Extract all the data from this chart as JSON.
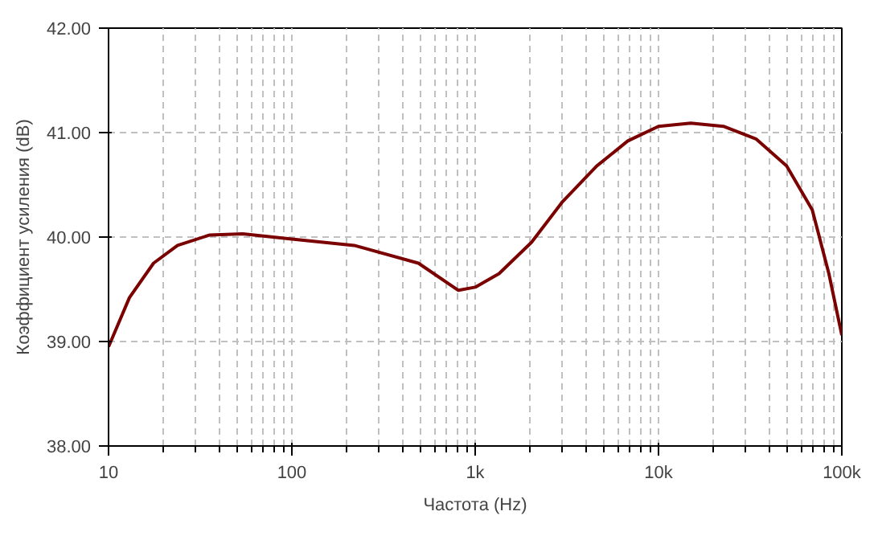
{
  "chart_data": {
    "type": "line",
    "xlabel": "Частота (Hz)",
    "ylabel": "Коэффициент усиления (dB)",
    "log": "x",
    "grid": true,
    "marker": "none",
    "line_style": "solid",
    "xlim": [
      10,
      100000
    ],
    "ylim": [
      38,
      42
    ],
    "xticks": [
      {
        "value": 10,
        "label": "10"
      },
      {
        "value": 20,
        "label": null
      },
      {
        "value": 30,
        "label": null
      },
      {
        "value": 40,
        "label": null
      },
      {
        "value": 50,
        "label": null
      },
      {
        "value": 60,
        "label": null
      },
      {
        "value": 70,
        "label": null
      },
      {
        "value": 80,
        "label": null
      },
      {
        "value": 90,
        "label": null
      },
      {
        "value": 100,
        "label": "100"
      },
      {
        "value": 200,
        "label": null
      },
      {
        "value": 300,
        "label": null
      },
      {
        "value": 400,
        "label": null
      },
      {
        "value": 500,
        "label": null
      },
      {
        "value": 600,
        "label": null
      },
      {
        "value": 700,
        "label": null
      },
      {
        "value": 800,
        "label": null
      },
      {
        "value": 900,
        "label": null
      },
      {
        "value": 1000,
        "label": "1k"
      },
      {
        "value": 2000,
        "label": null
      },
      {
        "value": 3000,
        "label": null
      },
      {
        "value": 4000,
        "label": null
      },
      {
        "value": 5000,
        "label": null
      },
      {
        "value": 6000,
        "label": null
      },
      {
        "value": 7000,
        "label": null
      },
      {
        "value": 8000,
        "label": null
      },
      {
        "value": 9000,
        "label": null
      },
      {
        "value": 10000,
        "label": "10k"
      },
      {
        "value": 20000,
        "label": null
      },
      {
        "value": 30000,
        "label": null
      },
      {
        "value": 40000,
        "label": null
      },
      {
        "value": 50000,
        "label": null
      },
      {
        "value": 60000,
        "label": null
      },
      {
        "value": 70000,
        "label": null
      },
      {
        "value": 80000,
        "label": null
      },
      {
        "value": 90000,
        "label": null
      },
      {
        "value": 100000,
        "label": "100k"
      }
    ],
    "yticks": [
      {
        "value": 38,
        "label": "38.00"
      },
      {
        "value": 39,
        "label": "39.00"
      },
      {
        "value": 40,
        "label": "40.00"
      },
      {
        "value": 41,
        "label": "41.00"
      },
      {
        "value": 42,
        "label": "42.00"
      }
    ],
    "x": [
      10,
      13,
      17.6,
      23.8,
      35.7,
      54,
      100,
      219,
      490,
      810,
      1000,
      1350,
      2030,
      3000,
      4600,
      6800,
      10000,
      15000,
      22600,
      34000,
      50000,
      69000,
      85000,
      100000
    ],
    "series": [
      {
        "color": "#7b0000",
        "values": [
          38.95,
          39.42,
          39.75,
          39.92,
          40.02,
          40.03,
          39.98,
          39.92,
          39.75,
          39.49,
          39.52,
          39.65,
          39.95,
          40.34,
          40.68,
          40.92,
          41.06,
          41.09,
          41.06,
          40.94,
          40.68,
          40.26,
          39.65,
          39.06
        ]
      }
    ]
  }
}
